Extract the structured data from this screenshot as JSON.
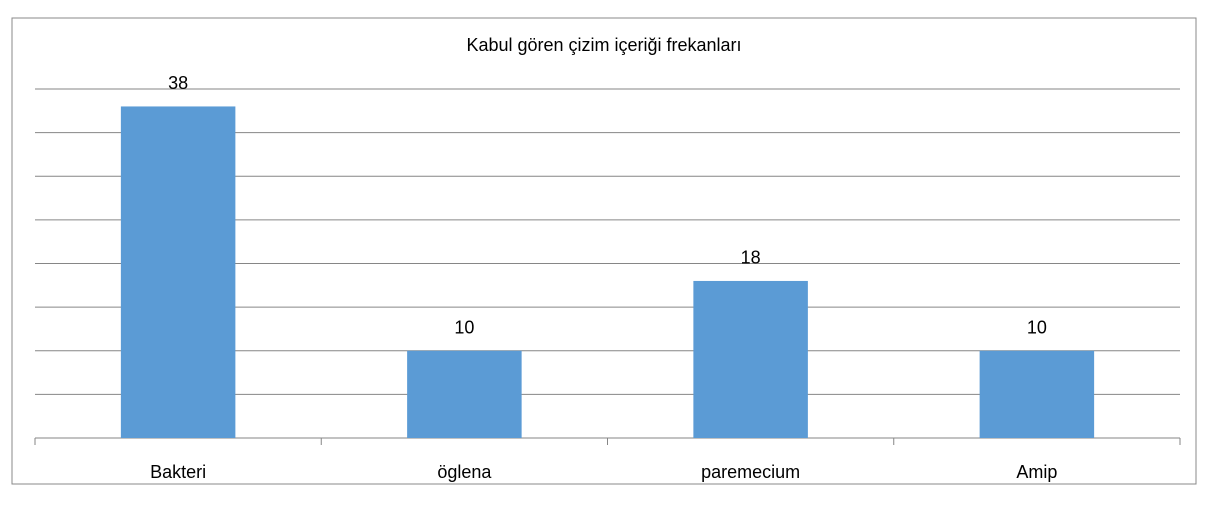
{
  "chart_data": {
    "type": "bar",
    "title": "Kabul gören çizim içeriği frekanları",
    "categories": [
      "Bakteri",
      "öglena",
      "paremecium",
      "Amip"
    ],
    "values": [
      38,
      10,
      18,
      10
    ],
    "color": "#5b9bd5",
    "ylim": [
      0,
      40
    ],
    "yticks": [
      0,
      5,
      10,
      15,
      20,
      25,
      30,
      35,
      40
    ],
    "grid": true
  }
}
